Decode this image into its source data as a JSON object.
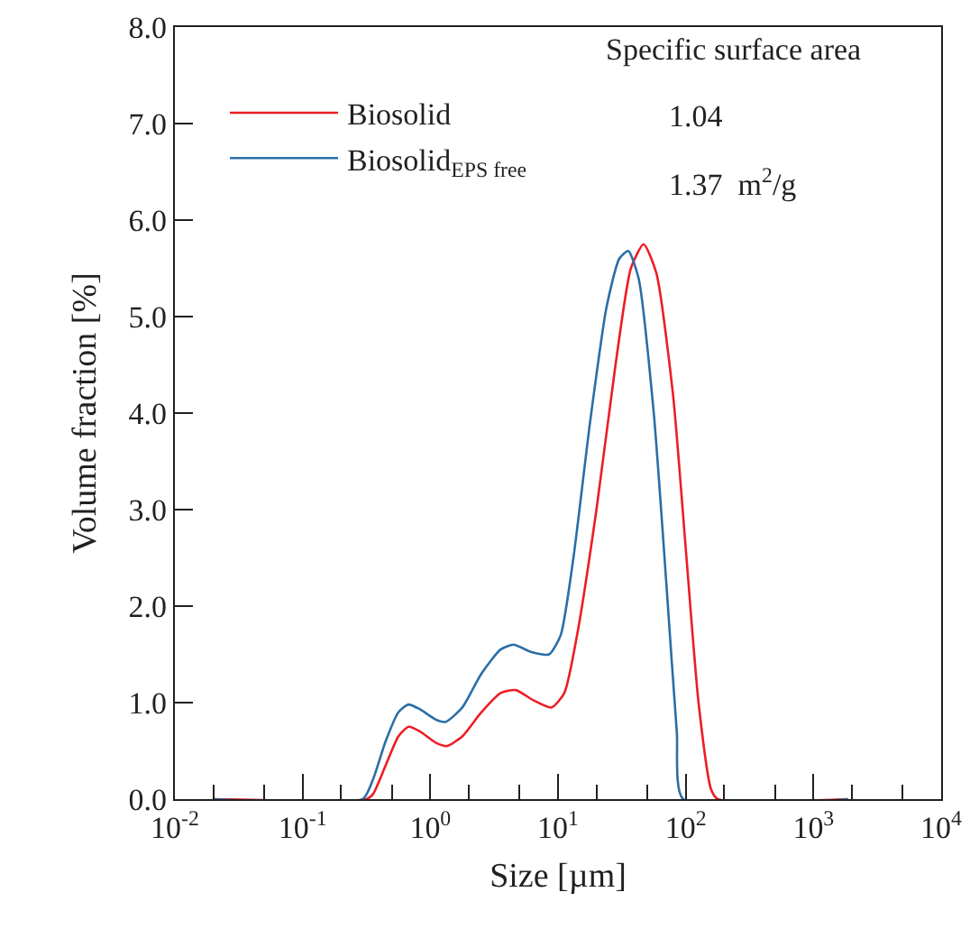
{
  "chart_data": {
    "type": "line",
    "xlabel": "Size [µm]",
    "ylabel": "Volume fraction [%]",
    "log": "x",
    "xlim": [
      0.01,
      10000
    ],
    "xticks": [
      {
        "value": 0.01,
        "label": "10$^{-2}$"
      },
      {
        "value": 0.1,
        "label": "10$^{-1}$"
      },
      {
        "value": 1,
        "label": "10$^{0}$"
      },
      {
        "value": 10,
        "label": "10$^{1}$"
      },
      {
        "value": 100,
        "label": "10$^{2}$"
      },
      {
        "value": 1000,
        "label": "10$^{3}$"
      },
      {
        "value": 10000,
        "label": "10$^{4}$"
      }
    ],
    "ylim": [
      0,
      8
    ],
    "yticks": [
      {
        "value": 0,
        "label": "0.0"
      },
      {
        "value": 1,
        "label": "1.0"
      },
      {
        "value": 2,
        "label": "2.0"
      },
      {
        "value": 3,
        "label": "3.0"
      },
      {
        "value": 4,
        "label": "4.0"
      },
      {
        "value": 5,
        "label": "5.0"
      },
      {
        "value": 6,
        "label": "6.0"
      },
      {
        "value": 7,
        "label": "7.0"
      },
      {
        "value": 8,
        "label": "8.0"
      }
    ],
    "grid": false,
    "legend": "top left",
    "marker": "none",
    "line_style": "solid",
    "annotations": [
      "Specific surface area",
      "1.04",
      "1.37  m$^{2}$/g"
    ],
    "series": [
      {
        "name": "Biosolid",
        "color": "#ee1c25",
        "x": [
          0.02,
          0.316,
          0.355,
          0.447,
          0.562,
          0.676,
          0.832,
          1.12,
          1.35,
          1.78,
          2.51,
          3.55,
          4.68,
          6.31,
          8.91,
          11.2,
          14.1,
          20.0,
          28.2,
          37.2,
          46.8,
          58.9,
          79.4,
          100,
          126,
          158,
          178,
          1860
        ],
        "values": [
          0,
          0,
          0.05,
          0.35,
          0.65,
          0.75,
          0.7,
          0.58,
          0.55,
          0.65,
          0.9,
          1.1,
          1.13,
          1.03,
          0.95,
          1.1,
          1.7,
          3.0,
          4.5,
          5.5,
          5.75,
          5.45,
          4.2,
          2.6,
          1.0,
          0.1,
          0,
          0
        ]
      },
      {
        "name": "Biosolid$_{EPS free}$",
        "color": "#2a6ea6",
        "x": [
          0.02,
          0.295,
          0.355,
          0.447,
          0.562,
          0.676,
          0.832,
          1.12,
          1.32,
          1.78,
          2.51,
          3.55,
          4.47,
          6.31,
          8.51,
          10.5,
          13.2,
          17.8,
          24.0,
          30.2,
          35.5,
          42.7,
          56.2,
          70.8,
          85.1,
          95.5,
          1860
        ],
        "values": [
          0,
          0,
          0.2,
          0.6,
          0.9,
          0.98,
          0.93,
          0.82,
          0.8,
          0.95,
          1.3,
          1.55,
          1.6,
          1.52,
          1.5,
          1.7,
          2.5,
          3.9,
          5.1,
          5.6,
          5.68,
          5.4,
          4.0,
          2.2,
          0.7,
          0,
          0
        ]
      }
    ]
  }
}
